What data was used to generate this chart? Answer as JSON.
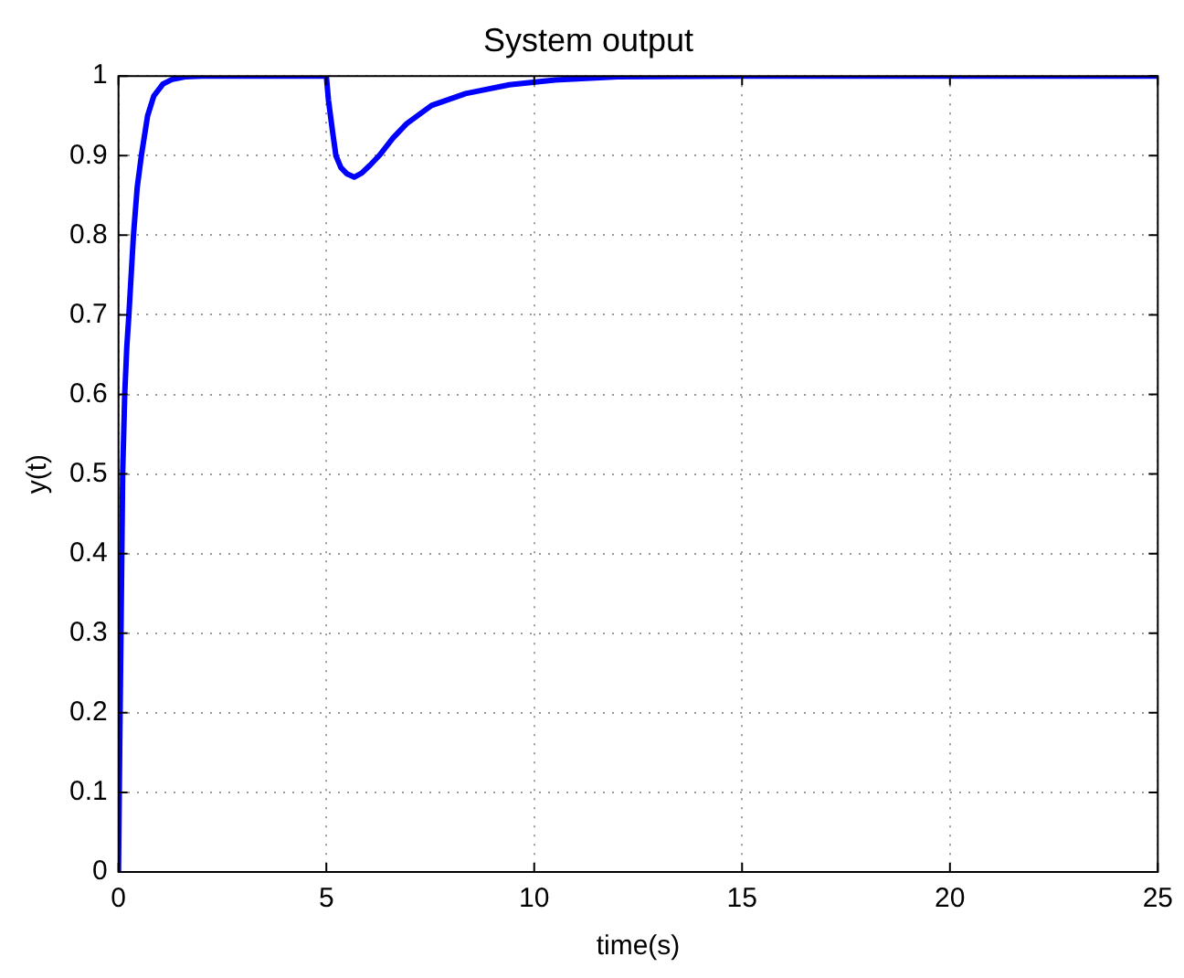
{
  "chart_data": {
    "type": "line",
    "title": "System output",
    "xlabel": "time(s)",
    "ylabel": "y(t)",
    "x": [
      0,
      0.03,
      0.06,
      0.1,
      0.15,
      0.2,
      0.25,
      0.36,
      0.45,
      0.55,
      0.7,
      0.85,
      1.07,
      1.3,
      1.6,
      2,
      5,
      5.05,
      5.15,
      5.23,
      5.35,
      5.5,
      5.67,
      5.85,
      6.05,
      6.27,
      6.6,
      6.93,
      7.53,
      8.35,
      9.4,
      10.5,
      12,
      15,
      20,
      25
    ],
    "series": [
      {
        "color": "#0000ff",
        "values": [
          0,
          0.16,
          0.3,
          0.5,
          0.6,
          0.66,
          0.7,
          0.8,
          0.86,
          0.9,
          0.95,
          0.975,
          0.99,
          0.996,
          0.999,
          1,
          1,
          0.97,
          0.93,
          0.9,
          0.885,
          0.877,
          0.873,
          0.878,
          0.888,
          0.9,
          0.922,
          0.94,
          0.963,
          0.978,
          0.989,
          0.995,
          0.999,
          1,
          1,
          1
        ]
      }
    ],
    "xlim": [
      0,
      25
    ],
    "ylim": [
      0,
      1
    ],
    "xticks": [
      0,
      5,
      10,
      15,
      20,
      25
    ],
    "yticks": [
      0,
      0.1,
      0.2,
      0.3,
      0.4,
      0.5,
      0.6,
      0.7,
      0.8,
      0.9,
      1
    ],
    "grid": true,
    "legend": false,
    "marker": "none",
    "line_style": "solid"
  }
}
